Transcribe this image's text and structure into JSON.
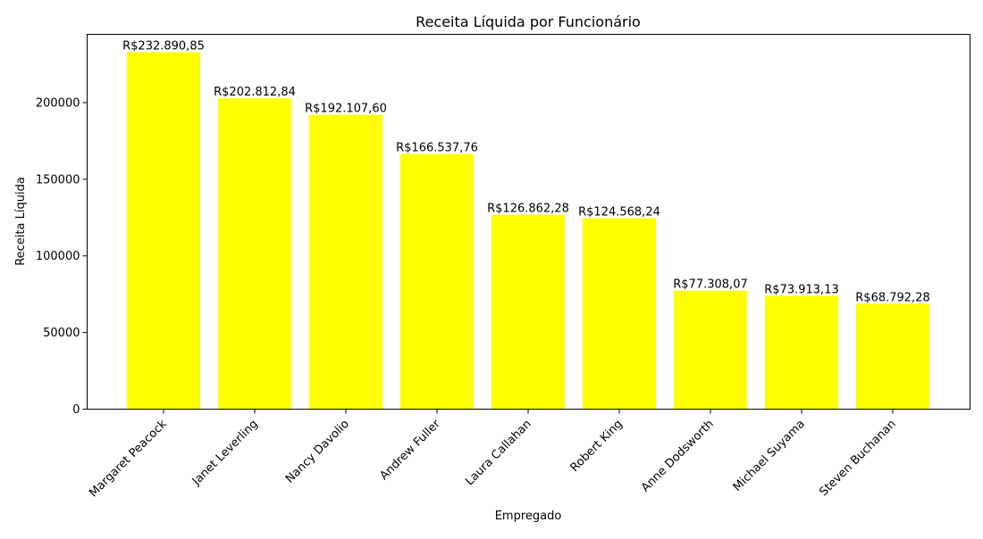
{
  "chart_data": {
    "type": "bar",
    "title": "Receita Líquida por Funcionário",
    "xlabel": "Empregado",
    "ylabel": "Receita Líquida",
    "ylim": [
      0,
      244535
    ],
    "yticks": [
      0,
      50000,
      100000,
      150000,
      200000
    ],
    "ytick_labels": [
      "0",
      "50000",
      "100000",
      "150000",
      "200000"
    ],
    "grid": false,
    "legend": "none",
    "bar_color": "#ffff00",
    "categories": [
      "Margaret Peacock",
      "Janet Leverling",
      "Nancy Davolio",
      "Andrew Fuller",
      "Laura Callahan",
      "Robert King",
      "Anne Dodsworth",
      "Michael Suyama",
      "Steven Buchanan"
    ],
    "values": [
      232890.85,
      202812.84,
      192107.6,
      166537.76,
      126862.28,
      124568.24,
      77308.07,
      73913.13,
      68792.28
    ],
    "data_labels": [
      "R$232.890,85",
      "R$202.812,84",
      "R$192.107,60",
      "R$166.537,76",
      "R$126.862,28",
      "R$124.568,24",
      "R$77.308,07",
      "R$73.913,13",
      "R$68.792,28"
    ]
  }
}
